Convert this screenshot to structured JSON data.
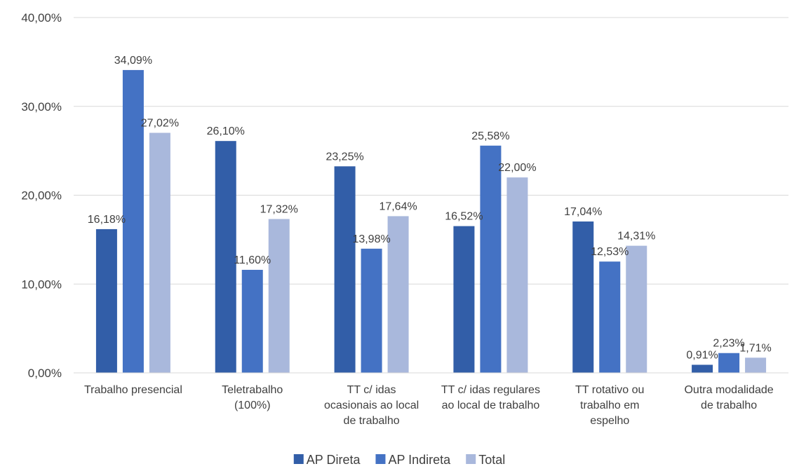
{
  "chart_data": {
    "type": "bar",
    "title": "",
    "xlabel": "",
    "ylabel": "",
    "ylim": [
      0,
      40
    ],
    "yticks": [
      "0,00%",
      "10,00%",
      "20,00%",
      "30,00%",
      "40,00%"
    ],
    "grid": true,
    "legend_position": "bottom",
    "categories": [
      [
        "Trabalho presencial"
      ],
      [
        "Teletrabalho",
        "(100%)"
      ],
      [
        "TT c/ idas",
        "ocasionais ao local",
        "de trabalho"
      ],
      [
        "TT c/ idas regulares",
        "ao local de trabalho"
      ],
      [
        "TT rotativo ou",
        "trabalho em",
        "espelho"
      ],
      [
        "Outra modalidade",
        "de trabalho"
      ]
    ],
    "series": [
      {
        "name": "AP Direta",
        "color": "#325ea8",
        "values": [
          16.18,
          26.1,
          23.25,
          16.52,
          17.04,
          0.91
        ],
        "labels": [
          "16,18%",
          "26,10%",
          "23,25%",
          "16,52%",
          "17,04%",
          "0,91%"
        ]
      },
      {
        "name": "AP Indireta",
        "color": "#4472c4",
        "values": [
          34.09,
          11.6,
          13.98,
          25.58,
          12.53,
          2.23
        ],
        "labels": [
          "34,09%",
          "11,60%",
          "13,98%",
          "25,58%",
          "12,53%",
          "2,23%"
        ]
      },
      {
        "name": "Total",
        "color": "#a9b8dc",
        "values": [
          27.02,
          17.32,
          17.64,
          22.0,
          14.31,
          1.71
        ],
        "labels": [
          "27,02%",
          "17,32%",
          "17,64%",
          "22,00%",
          "14,31%",
          "1,71%"
        ]
      }
    ]
  }
}
